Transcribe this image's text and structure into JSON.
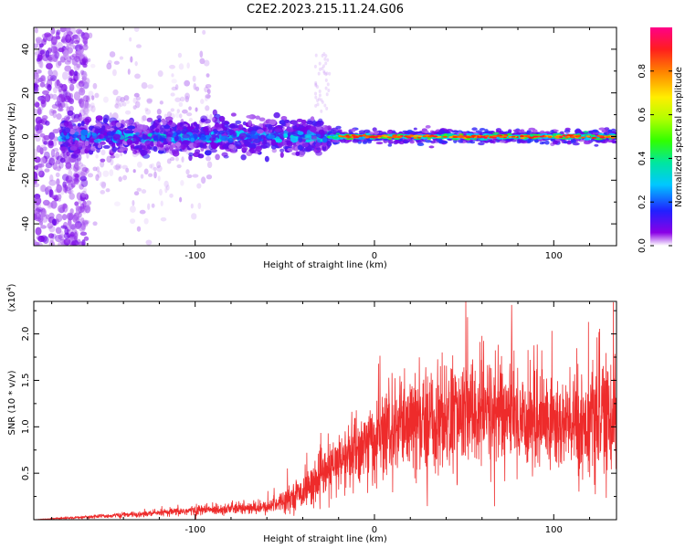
{
  "figure": {
    "title": "C2E2.2023.215.11.24.G06"
  },
  "chart_data": [
    {
      "type": "heatmap",
      "xlabel": "Height of straight line (km)",
      "ylabel": "Frequency (Hz)",
      "xlim": [
        -190,
        135
      ],
      "ylim": [
        -50,
        50
      ],
      "xticks": [
        -100,
        0,
        100
      ],
      "yticks": [
        -40,
        -20,
        0,
        20,
        40
      ],
      "colorbar": {
        "label": "Normalized spectral amplitude",
        "range": [
          0.0,
          1.0
        ],
        "ticks": [
          0.0,
          0.2,
          0.4,
          0.6,
          0.8
        ],
        "tick_labels": [
          "0.0",
          "0.2",
          "0.4",
          "0.6",
          "0.8"
        ],
        "colormap": [
          "#ffffff",
          "#7a00e6",
          "#2030ff",
          "#00d8ff",
          "#00e080",
          "#40ff00",
          "#c8ff00",
          "#ffee00",
          "#ff8000",
          "#ff2000",
          "#ff0090"
        ]
      },
      "description_series": [
        {
          "x_range": [
            -190,
            -165
          ],
          "freq_spread": 50,
          "amplitude": 0.1
        },
        {
          "x_range": [
            -165,
            -25
          ],
          "center_freq": 0,
          "half_width_hz": 8,
          "amplitude": 0.3
        },
        {
          "x_range": [
            -25,
            135
          ],
          "center_freq": 0,
          "half_width_hz": 3,
          "amplitude": 0.8
        }
      ],
      "grid": false
    },
    {
      "type": "line",
      "xlabel": "Height of straight line (km)",
      "ylabel": "SNR (10 * v/v)",
      "y_exponent": "(x10^4)",
      "xlim": [
        -190,
        135
      ],
      "ylim": [
        0,
        2.35
      ],
      "xticks": [
        -100,
        0,
        100
      ],
      "yticks": [
        0.5,
        1.0,
        1.5,
        2.0
      ],
      "ytick_labels": [
        "0.5",
        "1.0",
        "1.5",
        "2.0"
      ],
      "line_color": "#ee2b2b",
      "x": [
        -190,
        -160,
        -140,
        -120,
        -100,
        -80,
        -70,
        -60,
        -50,
        -40,
        -30,
        -20,
        -10,
        0,
        10,
        20,
        30,
        40,
        50,
        60,
        70,
        80,
        90,
        100,
        110,
        120,
        135
      ],
      "y": [
        0.0,
        0.03,
        0.05,
        0.07,
        0.1,
        0.12,
        0.12,
        0.13,
        0.22,
        0.3,
        0.45,
        0.6,
        0.75,
        0.85,
        0.95,
        1.0,
        1.05,
        1.1,
        1.12,
        1.15,
        1.15,
        1.1,
        1.08,
        1.05,
        1.0,
        1.05,
        1.1
      ],
      "grid": false
    }
  ]
}
